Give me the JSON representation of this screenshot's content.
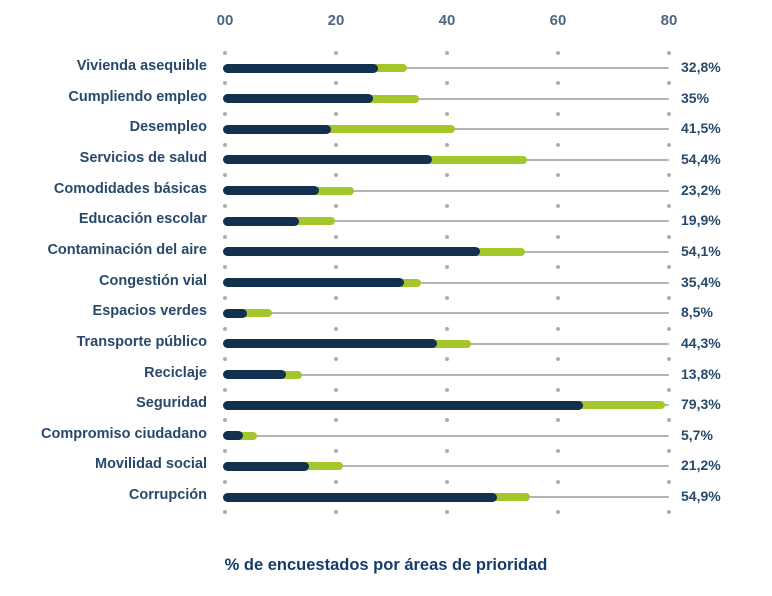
{
  "chart_data": {
    "type": "bar",
    "subtype": "horizontal-stacked-pill",
    "title": "% de encuestados por áreas de prioridad",
    "x_axis": {
      "position": "top",
      "range": [
        0,
        80
      ],
      "tick_values": [
        0,
        20,
        40,
        60,
        80
      ],
      "tick_labels": [
        "00",
        "20",
        "40",
        "60",
        "80"
      ],
      "grid": "dotted"
    },
    "categories": [
      "Vivienda asequible",
      "Cumpliendo empleo",
      "Desempleo",
      "Servicios de salud",
      "Comodidades básicas",
      "Educación escolar",
      "Contaminación del aire",
      "Congestión vial",
      "Espacios verdes",
      "Transporte público",
      "Reciclaje",
      "Seguridad",
      "Compromiso ciudadano",
      "Movilidad social",
      "Corrupción"
    ],
    "series": [
      {
        "name": "segmento-oscuro",
        "color": "#12314e",
        "values": [
          26.9,
          26.0,
          18.3,
          36.5,
          16.2,
          12.6,
          45.3,
          31.5,
          3.2,
          37.4,
          10.2,
          63.8,
          2.5,
          14.4,
          48.2
        ]
      },
      {
        "name": "segmento-verde-total",
        "color": "#a3c62d",
        "values": [
          32.8,
          35.0,
          41.5,
          54.4,
          23.2,
          19.9,
          54.1,
          35.4,
          8.5,
          44.3,
          13.8,
          79.3,
          5.7,
          21.2,
          54.9
        ]
      }
    ],
    "value_labels": [
      "32,8%",
      "35%",
      "41,5%",
      "54,4%",
      "23,2%",
      "19,9%",
      "54,1%",
      "35,4%",
      "8,5%",
      "44,3%",
      "13,8%",
      "79,3%",
      "5,7%",
      "21,2%",
      "54,9%"
    ],
    "legend": "none"
  },
  "colors": {
    "bar_dark": "#12314e",
    "bar_green": "#a3c62d",
    "track_gray": "#b4b4b4",
    "dot_gray": "#aeaeae",
    "category_text": "#29496b",
    "value_text": "#29496b",
    "axis_text": "#51677e",
    "title_text": "#123d6b"
  }
}
